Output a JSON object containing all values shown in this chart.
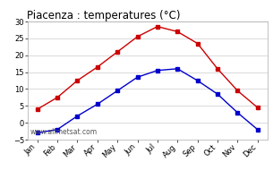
{
  "title": "Piacenza : temperatures (°C)",
  "months": [
    "Jan",
    "Feb",
    "Mar",
    "Apr",
    "May",
    "Jun",
    "Jul",
    "Aug",
    "Sep",
    "Oct",
    "Nov",
    "Dec"
  ],
  "max_temps": [
    4,
    7.5,
    12.5,
    16.5,
    21,
    25.5,
    28.5,
    27,
    23.5,
    16,
    9.5,
    4.5
  ],
  "min_temps": [
    -3,
    -2,
    2,
    5.5,
    9.5,
    13.5,
    15.5,
    16,
    12.5,
    8.5,
    3,
    -2
  ],
  "max_color": "#cc0000",
  "min_color": "#0000cc",
  "ylim": [
    -5,
    30
  ],
  "yticks": [
    -5,
    0,
    5,
    10,
    15,
    20,
    25,
    30
  ],
  "grid_color": "#cccccc",
  "bg_color": "#ffffff",
  "watermark": "www.allmetsat.com",
  "title_fontsize": 8.5,
  "tick_fontsize": 6.0,
  "watermark_fontsize": 5.5
}
